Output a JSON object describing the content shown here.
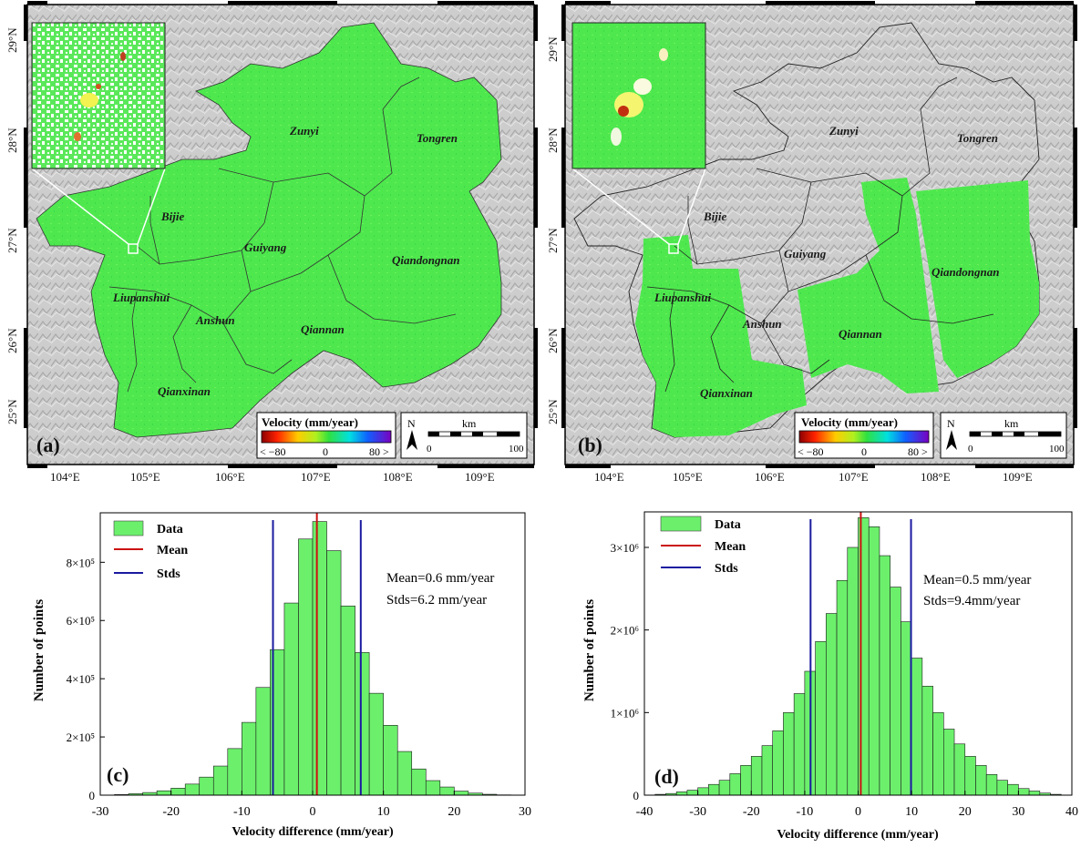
{
  "chart_data": [
    {
      "panel": "(a)",
      "type": "map",
      "lat_ticks": [
        "29°N",
        "28°N",
        "27°N",
        "26°N",
        "25°N"
      ],
      "lon_ticks": [
        "104°E",
        "105°E",
        "106°E",
        "107°E",
        "108°E",
        "109°E"
      ],
      "regions": [
        "Zunyi",
        "Tongren",
        "Bijie",
        "Guiyang",
        "Qiandongnan",
        "Liupanshui",
        "Anshun",
        "Qiannan",
        "Qianxinan"
      ],
      "legend": {
        "title": "Velocity (mm/year)",
        "min_label": "< −80",
        "mid_label": "0",
        "max_label": "80 >"
      },
      "north": "N",
      "scale": {
        "unit": "km",
        "start": "0",
        "end": "100"
      }
    },
    {
      "panel": "(b)",
      "type": "map",
      "lat_ticks": [
        "29°N",
        "28°N",
        "27°N",
        "26°N",
        "25°N"
      ],
      "lon_ticks": [
        "104°E",
        "105°E",
        "106°E",
        "107°E",
        "108°E",
        "109°E"
      ],
      "regions": [
        "Zunyi",
        "Tongren",
        "Bijie",
        "Guiyang",
        "Qiandongnan",
        "Liupanshui",
        "Anshun",
        "Qiannan",
        "Qianxinan"
      ],
      "legend": {
        "title": "Velocity (mm/year)",
        "min_label": "< −80",
        "mid_label": "0",
        "max_label": "80 >"
      },
      "north": "N",
      "scale": {
        "unit": "km",
        "start": "0",
        "end": "100"
      }
    },
    {
      "panel": "(c)",
      "type": "bar",
      "xlabel": "Velocity difference (mm/year)",
      "ylabel": "Number of points",
      "xlim": [
        -30,
        30
      ],
      "ylim": [
        0,
        970000
      ],
      "bin_width": 2,
      "bin_start": -30,
      "values": [
        0,
        2000,
        5000,
        9000,
        15000,
        24000,
        38000,
        62000,
        100000,
        160000,
        250000,
        370000,
        500000,
        660000,
        880000,
        940000,
        840000,
        650000,
        490000,
        350000,
        240000,
        150000,
        90000,
        50000,
        28000,
        14000,
        7000,
        3000,
        1000,
        0
      ],
      "xticks": [
        "-30",
        "-20",
        "-10",
        "0",
        "10",
        "20",
        "30"
      ],
      "xtick_values": [
        -30,
        -20,
        -10,
        0,
        10,
        20,
        30
      ],
      "yticks": [
        "0",
        "2×10⁵",
        "4×10⁵",
        "6×10⁵",
        "8×10⁵"
      ],
      "ytick_values": [
        0,
        200000,
        400000,
        600000,
        800000
      ],
      "mean": 0.6,
      "stds": [
        -5.6,
        6.8
      ],
      "legend": [
        "Data",
        "Mean",
        "Stds"
      ],
      "annotation": [
        "Mean=0.6 mm/year",
        "Stds=6.2 mm/year"
      ]
    },
    {
      "panel": "(d)",
      "type": "bar",
      "xlabel": "Velocity difference (mm/year)",
      "ylabel": "Number of points",
      "xlim": [
        -40,
        40
      ],
      "ylim": [
        0,
        3430000
      ],
      "bin_width": 2,
      "bin_start": -40,
      "values": [
        0,
        10000,
        20000,
        40000,
        60000,
        90000,
        130000,
        180000,
        260000,
        360000,
        470000,
        600000,
        780000,
        1000000,
        1230000,
        1500000,
        1860000,
        2200000,
        2600000,
        3000000,
        3360000,
        3250000,
        2900000,
        2520000,
        2100000,
        1660000,
        1320000,
        1000000,
        800000,
        620000,
        470000,
        360000,
        250000,
        180000,
        130000,
        80000,
        50000,
        25000,
        10000,
        0
      ],
      "xticks": [
        "-40",
        "-30",
        "-20",
        "-10",
        "0",
        "10",
        "20",
        "30",
        "40"
      ],
      "xtick_values": [
        -40,
        -30,
        -20,
        -10,
        0,
        10,
        20,
        30,
        40
      ],
      "yticks": [
        "0",
        "1×10⁶",
        "2×10⁶",
        "3×10⁶"
      ],
      "ytick_values": [
        0,
        1000000,
        2000000,
        3000000
      ],
      "mean": 0.5,
      "stds": [
        -8.9,
        9.9
      ],
      "legend": [
        "Data",
        "Mean",
        "Stds"
      ],
      "annotation": [
        "Mean=0.5 mm/year",
        "Stds=9.4mm/year"
      ]
    }
  ],
  "colors": {
    "bar_fill": "#6cf06c",
    "mean_line": "#cc1111",
    "std_line": "#1a1aa0",
    "map_green": "#4de84d",
    "hillshade": "#c8c8c8"
  }
}
